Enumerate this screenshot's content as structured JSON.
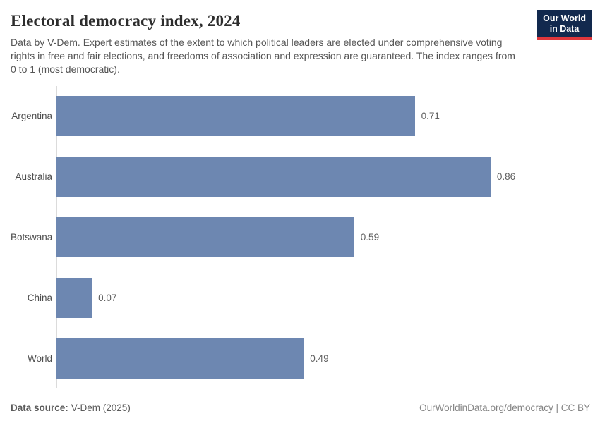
{
  "header": {
    "title": "Electoral democracy index, 2024",
    "subtitle": "Data by V-Dem. Expert estimates of the extent to which political leaders are elected under comprehensive voting rights in free and fair elections, and freedoms of association and expression are guaranteed. The index ranges from 0 to 1 (most democratic).",
    "logo": {
      "line1": "Our World",
      "line2": "in Data"
    }
  },
  "chart_data": {
    "type": "bar",
    "orientation": "horizontal",
    "title": "Electoral democracy index, 2024",
    "categories": [
      "Argentina",
      "Australia",
      "Botswana",
      "China",
      "World"
    ],
    "values": [
      0.71,
      0.86,
      0.59,
      0.07,
      0.49
    ],
    "value_labels": [
      "0.71",
      "0.86",
      "0.59",
      "0.07",
      "0.49"
    ],
    "xlabel": "",
    "ylabel": "",
    "xlim": [
      0,
      1
    ],
    "grid": false,
    "legend": "none",
    "bar_color": "#6d87b1"
  },
  "footer": {
    "source_label": "Data source:",
    "source_value": "V-Dem (2025)",
    "attribution": "OurWorldinData.org/democracy | CC BY"
  },
  "colors": {
    "bar": "#6d87b1",
    "axis_line": "#dbdbdb",
    "title_text": "#2d2d2d",
    "subtitle_text": "#555555",
    "logo_background": "#12294e",
    "logo_underline": "#e0373c"
  }
}
